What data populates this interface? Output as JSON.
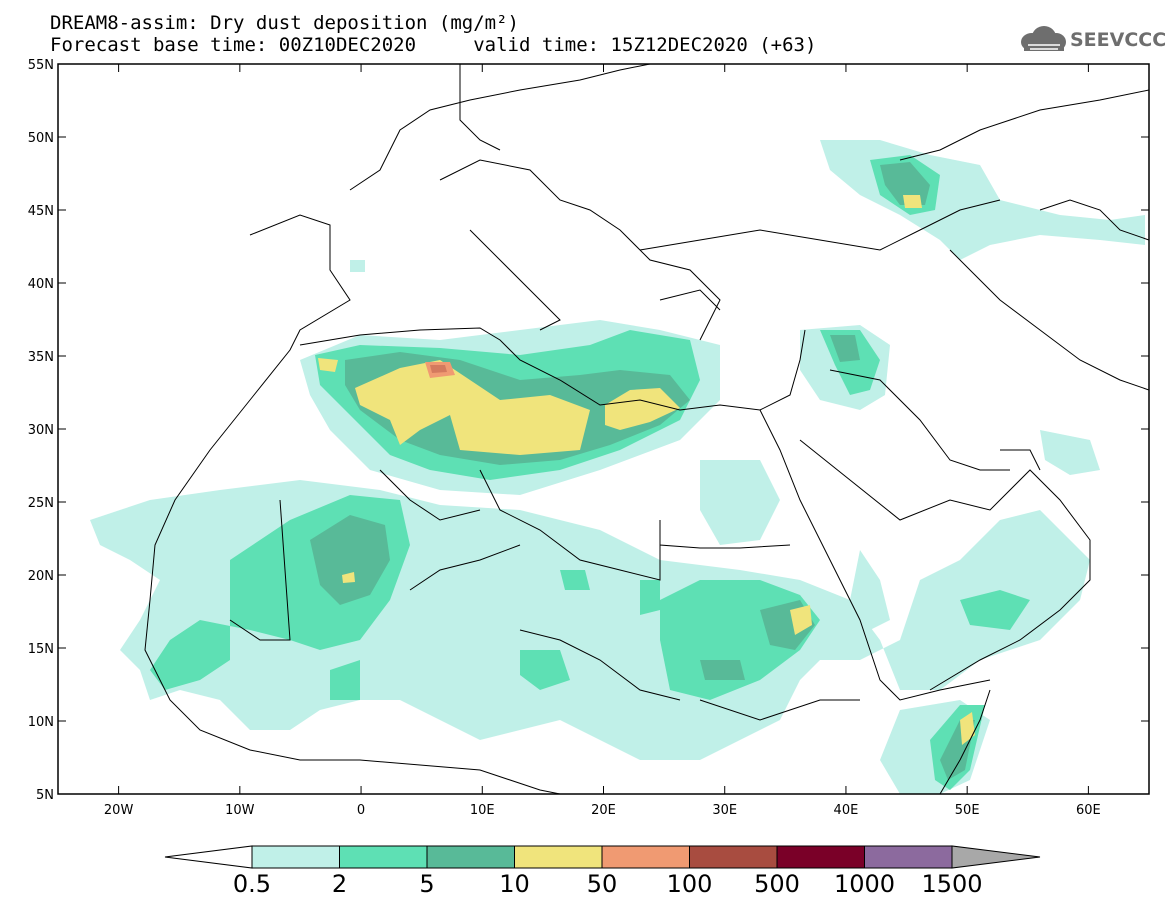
{
  "title": {
    "line1": "DREAM8-assim: Dry dust deposition (mg/m²)",
    "line2": "Forecast base time: 00Z10DEC2020     valid time: 15Z12DEC2020 (+63)"
  },
  "logo": {
    "text": "SEEVCCC",
    "icon": "cloud-icon"
  },
  "map": {
    "lon_range": [
      -25,
      65
    ],
    "lat_range": [
      5,
      55
    ],
    "lat_ticks": [
      {
        "v": 55,
        "l": "55N"
      },
      {
        "v": 50,
        "l": "50N"
      },
      {
        "v": 45,
        "l": "45N"
      },
      {
        "v": 40,
        "l": "40N"
      },
      {
        "v": 35,
        "l": "35N"
      },
      {
        "v": 30,
        "l": "30N"
      },
      {
        "v": 25,
        "l": "25N"
      },
      {
        "v": 20,
        "l": "20N"
      },
      {
        "v": 15,
        "l": "15N"
      },
      {
        "v": 10,
        "l": "10N"
      },
      {
        "v": 5,
        "l": "5N"
      }
    ],
    "lon_ticks": [
      {
        "v": -20,
        "l": "20W"
      },
      {
        "v": -10,
        "l": "10W"
      },
      {
        "v": 0,
        "l": "0"
      },
      {
        "v": 10,
        "l": "10E"
      },
      {
        "v": 20,
        "l": "20E"
      },
      {
        "v": 30,
        "l": "30E"
      },
      {
        "v": 40,
        "l": "40E"
      },
      {
        "v": 50,
        "l": "50E"
      },
      {
        "v": 60,
        "l": "60E"
      }
    ]
  },
  "colorbar": {
    "labels": [
      "0.5",
      "2",
      "5",
      "10",
      "50",
      "100",
      "500",
      "1000",
      "1500"
    ],
    "colors": [
      "#c0f0e8",
      "#5ee0b4",
      "#58ba98",
      "#f0e47c",
      "#f09a72",
      "#a84c40",
      "#7a0028",
      "#8c6a9e"
    ],
    "under_color": "#ffffff",
    "over_color": "#a8a8a8"
  }
}
